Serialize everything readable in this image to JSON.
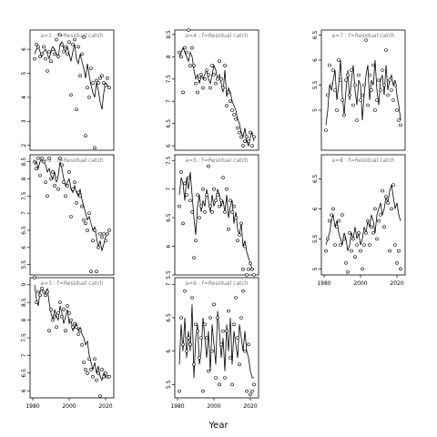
{
  "xlabel": "Year",
  "chart_data": [
    {
      "type": "line",
      "title": "a=1  :  f=Residual catch",
      "ylim": [
        1.8,
        6.8
      ],
      "yticks": [
        2,
        3,
        4,
        5,
        6
      ],
      "xticks": [],
      "x": [
        1981,
        1982,
        1983,
        1984,
        1985,
        1986,
        1987,
        1988,
        1989,
        1990,
        1991,
        1992,
        1993,
        1994,
        1995,
        1996,
        1997,
        1998,
        1999,
        2000,
        2001,
        2002,
        2003,
        2004,
        2005,
        2006,
        2007,
        2008,
        2009,
        2010,
        2011,
        2012,
        2013,
        2014,
        2015,
        2016,
        2017,
        2018,
        2019,
        2020,
        2021,
        2022
      ],
      "series": [
        {
          "type": "line",
          "values": [
            5.8,
            6.0,
            6.1,
            5.9,
            5.7,
            5.9,
            6.0,
            5.8,
            5.6,
            5.9,
            6.1,
            6.0,
            5.8,
            5.7,
            6.2,
            6.3,
            6.0,
            5.9,
            6.1,
            5.8,
            5.5,
            5.9,
            6.2,
            5.6,
            5.4,
            5.8,
            5.5,
            5.2,
            4.8,
            5.4,
            4.9,
            4.5,
            4.2,
            4.0,
            4.6,
            4.3,
            3.8,
            3.5,
            4.2,
            4.6,
            4.5,
            4.4
          ]
        },
        {
          "type": "scatter",
          "values": [
            5.6,
            6.2,
            6.1,
            5.7,
            5.8,
            6.1,
            5.6,
            5.1,
            5.9,
            5.5,
            6.0,
            5.8,
            6.4,
            5.7,
            6.6,
            6.2,
            5.9,
            6.1,
            5.8,
            6.3,
            4.1,
            6.2,
            6.4,
            3.5,
            6.1,
            4.9,
            5.8,
            6.5,
            2.4,
            4.4,
            4.0,
            5.2,
            4.6,
            1.9,
            4.7,
            4.6,
            4.8,
            4.9,
            4.6,
            4.5,
            4.8,
            4.4
          ]
        }
      ]
    },
    {
      "type": "line",
      "title": "a=4  :  f=Residual catch",
      "ylim": [
        5.9,
        8.6
      ],
      "yticks": [
        6.0,
        6.5,
        7.0,
        7.5,
        8.0,
        8.5
      ],
      "xticks": [],
      "x": [
        1981,
        1982,
        1983,
        1984,
        1985,
        1986,
        1987,
        1988,
        1989,
        1990,
        1991,
        1992,
        1993,
        1994,
        1995,
        1996,
        1997,
        1998,
        1999,
        2000,
        2001,
        2002,
        2003,
        2004,
        2005,
        2006,
        2007,
        2008,
        2009,
        2010,
        2011,
        2012,
        2013,
        2014,
        2015,
        2016,
        2017,
        2018,
        2019,
        2020,
        2021,
        2022
      ],
      "series": [
        {
          "type": "line",
          "values": [
            8.0,
            8.1,
            8.2,
            8.1,
            8.0,
            7.9,
            8.1,
            8.0,
            7.7,
            7.5,
            7.6,
            7.4,
            7.6,
            7.5,
            7.6,
            7.7,
            7.5,
            7.4,
            7.6,
            7.8,
            7.7,
            7.5,
            7.6,
            7.4,
            7.2,
            7.7,
            7.1,
            7.3,
            7.2,
            7.0,
            6.9,
            6.8,
            6.6,
            6.5,
            6.3,
            6.2,
            6.4,
            6.1,
            6.0,
            6.2,
            6.3,
            6.1
          ]
        },
        {
          "type": "scatter",
          "values": [
            8.1,
            8.0,
            7.2,
            8.2,
            8.1,
            8.6,
            7.8,
            8.2,
            7.8,
            7.4,
            7.2,
            7.5,
            7.6,
            7.3,
            7.5,
            7.7,
            7.6,
            7.3,
            7.8,
            7.6,
            7.4,
            7.5,
            7.9,
            7.5,
            7.3,
            7.8,
            6.9,
            7.2,
            7.0,
            6.8,
            6.7,
            6.6,
            6.4,
            6.3,
            6.2,
            6.0,
            6.1,
            6.2,
            6.1,
            6.3,
            6.0,
            6.2
          ]
        }
      ]
    },
    {
      "type": "line",
      "title": "a=7  :  f=Residual catch",
      "ylim": [
        4.2,
        6.6
      ],
      "yticks": [
        5.0,
        5.5,
        6.0,
        6.5
      ],
      "xticks": [],
      "x": [
        1981,
        1982,
        1983,
        1984,
        1985,
        1986,
        1987,
        1988,
        1989,
        1990,
        1991,
        1992,
        1993,
        1994,
        1995,
        1996,
        1997,
        1998,
        1999,
        2000,
        2001,
        2002,
        2003,
        2004,
        2005,
        2006,
        2007,
        2008,
        2009,
        2010,
        2011,
        2012,
        2013,
        2014,
        2015,
        2016,
        2017,
        2018,
        2019,
        2020,
        2021,
        2022
      ],
      "series": [
        {
          "type": "line",
          "values": [
            4.7,
            5.0,
            5.5,
            5.4,
            5.6,
            5.8,
            5.2,
            5.5,
            6.0,
            5.3,
            4.9,
            5.4,
            5.8,
            5.2,
            5.6,
            5.9,
            5.4,
            5.1,
            5.6,
            5.5,
            4.8,
            5.3,
            5.7,
            5.9,
            5.2,
            5.6,
            5.5,
            6.0,
            5.4,
            5.1,
            5.6,
            5.7,
            5.3,
            5.9,
            5.4,
            5.6,
            5.7,
            5.5,
            5.6,
            5.3,
            5.1,
            4.8
          ]
        },
        {
          "type": "scatter",
          "values": [
            4.6,
            5.3,
            5.9,
            5.5,
            5.8,
            5.4,
            5.0,
            6.0,
            5.6,
            5.2,
            4.9,
            5.6,
            5.7,
            5.3,
            5.8,
            5.1,
            5.5,
            4.8,
            5.7,
            5.2,
            5.3,
            5.5,
            6.4,
            5.1,
            5.7,
            5.4,
            5.9,
            5.0,
            5.2,
            5.6,
            5.4,
            5.8,
            5.5,
            6.2,
            5.3,
            5.6,
            5.4,
            5.2,
            5.5,
            5.0,
            4.8,
            4.7
          ]
        }
      ]
    },
    {
      "type": "line",
      "title": "a=2  :  f=Residual catch",
      "ylim": [
        5.2,
        8.7
      ],
      "yticks": [
        5.5,
        6.0,
        6.5,
        7.0,
        7.5,
        8.0,
        8.5
      ],
      "xticks": [],
      "x": [
        1981,
        1982,
        1983,
        1984,
        1985,
        1986,
        1987,
        1988,
        1989,
        1990,
        1991,
        1992,
        1993,
        1994,
        1995,
        1996,
        1997,
        1998,
        1999,
        2000,
        2001,
        2002,
        2003,
        2004,
        2005,
        2006,
        2007,
        2008,
        2009,
        2010,
        2011,
        2012,
        2013,
        2014,
        2015,
        2016,
        2017,
        2018,
        2019,
        2020,
        2021,
        2022
      ],
      "series": [
        {
          "type": "line",
          "values": [
            8.4,
            8.5,
            8.3,
            8.5,
            8.6,
            8.5,
            8.4,
            8.2,
            8.3,
            8.1,
            8.0,
            8.2,
            7.9,
            8.1,
            8.5,
            8.3,
            8.0,
            7.8,
            7.9,
            8.0,
            7.7,
            7.6,
            7.8,
            7.6,
            7.5,
            7.7,
            7.4,
            7.2,
            7.0,
            6.8,
            6.9,
            6.7,
            6.5,
            6.6,
            6.3,
            6.0,
            6.2,
            5.9,
            6.1,
            6.3,
            6.4,
            6.4
          ]
        },
        {
          "type": "scatter",
          "values": [
            8.5,
            8.3,
            8.6,
            8.1,
            8.6,
            8.5,
            7.9,
            7.5,
            8.6,
            8.0,
            8.2,
            7.8,
            8.0,
            7.7,
            8.6,
            8.4,
            7.9,
            7.5,
            7.8,
            8.2,
            6.9,
            7.7,
            7.9,
            7.3,
            7.6,
            7.5,
            7.2,
            6.8,
            6.7,
            6.5,
            7.0,
            5.3,
            6.2,
            6.5,
            5.3,
            6.0,
            6.4,
            6.3,
            6.4,
            6.2,
            6.4,
            6.5
          ]
        }
      ]
    },
    {
      "type": "line",
      "title": "a=5  :  f=Residual catch",
      "ylim": [
        5.5,
        7.6
      ],
      "yticks": [
        5.5,
        6.0,
        6.5,
        7.0,
        7.5
      ],
      "xticks": [],
      "x": [
        1981,
        1982,
        1983,
        1984,
        1985,
        1986,
        1987,
        1988,
        1989,
        1990,
        1991,
        1992,
        1993,
        1994,
        1995,
        1996,
        1997,
        1998,
        1999,
        2000,
        2001,
        2002,
        2003,
        2004,
        2005,
        2006,
        2007,
        2008,
        2009,
        2010,
        2011,
        2012,
        2013,
        2014,
        2015,
        2016,
        2017,
        2018,
        2019,
        2020,
        2021,
        2022
      ],
      "series": [
        {
          "type": "line",
          "values": [
            6.9,
            7.2,
            7.1,
            6.8,
            7.2,
            7.0,
            7.3,
            6.9,
            6.5,
            6.2,
            6.7,
            6.9,
            6.6,
            6.8,
            6.7,
            7.0,
            6.8,
            6.6,
            6.9,
            6.7,
            6.8,
            7.0,
            6.9,
            6.7,
            6.8,
            6.6,
            6.9,
            6.5,
            6.7,
            6.8,
            6.4,
            6.6,
            6.3,
            6.2,
            6.4,
            6.0,
            6.1,
            5.9,
            5.8,
            5.7,
            5.6,
            5.6
          ]
        },
        {
          "type": "scatter",
          "values": [
            6.7,
            7.3,
            6.4,
            7.1,
            6.9,
            7.2,
            6.8,
            6.6,
            5.8,
            6.1,
            6.9,
            6.5,
            6.7,
            7.0,
            6.6,
            6.9,
            7.4,
            6.7,
            6.6,
            7.0,
            6.8,
            6.9,
            6.7,
            6.8,
            7.2,
            6.6,
            7.0,
            6.3,
            6.8,
            6.6,
            6.7,
            6.5,
            6.1,
            6.2,
            6.4,
            5.6,
            6.0,
            5.5,
            5.6,
            5.7,
            5.6,
            5.5
          ]
        }
      ]
    },
    {
      "type": "line",
      "title": "a=8  :  f=Residual catch",
      "ylim": [
        4.9,
        6.9
      ],
      "yticks": [
        5.0,
        5.5,
        6.0,
        6.5
      ],
      "xticks": [
        1980,
        2000,
        2020
      ],
      "x": [
        1981,
        1982,
        1983,
        1984,
        1985,
        1986,
        1987,
        1988,
        1989,
        1990,
        1991,
        1992,
        1993,
        1994,
        1995,
        1996,
        1997,
        1998,
        1999,
        2000,
        2001,
        2002,
        2003,
        2004,
        2005,
        2006,
        2007,
        2008,
        2009,
        2010,
        2011,
        2012,
        2013,
        2014,
        2015,
        2016,
        2017,
        2018,
        2019,
        2020,
        2021,
        2022
      ],
      "series": [
        {
          "type": "line",
          "values": [
            5.4,
            5.5,
            5.6,
            5.8,
            5.9,
            5.7,
            5.8,
            5.6,
            5.5,
            5.4,
            5.6,
            5.5,
            5.3,
            5.4,
            5.6,
            5.5,
            5.7,
            5.5,
            5.6,
            5.4,
            5.5,
            5.7,
            5.6,
            5.8,
            5.7,
            5.9,
            5.8,
            5.6,
            5.9,
            6.0,
            6.1,
            5.9,
            6.0,
            6.2,
            6.1,
            6.3,
            6.4,
            6.2,
            6.0,
            6.1,
            5.9,
            5.8
          ]
        },
        {
          "type": "scatter",
          "values": [
            5.3,
            5.5,
            5.8,
            5.9,
            6.0,
            5.4,
            5.7,
            5.8,
            5.4,
            5.9,
            5.5,
            5.1,
            4.95,
            5.6,
            5.3,
            5.5,
            5.2,
            5.4,
            5.6,
            5.3,
            5.0,
            5.4,
            5.6,
            5.8,
            5.4,
            5.7,
            5.6,
            6.0,
            5.5,
            5.8,
            5.9,
            6.3,
            5.7,
            6.2,
            6.1,
            5.3,
            6.0,
            6.4,
            5.4,
            5.1,
            5.3,
            5.0
          ]
        }
      ]
    },
    {
      "type": "line",
      "title": "a=3  :  f=Residual catch",
      "ylim": [
        5.8,
        9.2
      ],
      "yticks": [
        6.0,
        6.5,
        7.0,
        7.5,
        8.0,
        8.5,
        9.0
      ],
      "xticks": [
        1980,
        2000,
        2020
      ],
      "x": [
        1981,
        1982,
        1983,
        1984,
        1985,
        1986,
        1987,
        1988,
        1989,
        1990,
        1991,
        1992,
        1993,
        1994,
        1995,
        1996,
        1997,
        1998,
        1999,
        2000,
        2001,
        2002,
        2003,
        2004,
        2005,
        2006,
        2007,
        2008,
        2009,
        2010,
        2011,
        2012,
        2013,
        2014,
        2015,
        2016,
        2017,
        2018,
        2019,
        2020,
        2021,
        2022
      ],
      "series": [
        {
          "type": "line",
          "values": [
            9.0,
            8.6,
            8.4,
            8.8,
            8.9,
            8.8,
            8.7,
            8.9,
            8.5,
            8.2,
            8.0,
            8.3,
            8.1,
            8.0,
            8.4,
            8.2,
            7.9,
            8.1,
            8.3,
            7.9,
            8.0,
            7.7,
            7.8,
            7.9,
            7.7,
            7.8,
            7.6,
            7.5,
            7.3,
            7.4,
            7.0,
            6.8,
            6.6,
            6.8,
            6.5,
            6.7,
            6.4,
            6.3,
            6.5,
            6.4,
            6.4,
            6.4
          ]
        },
        {
          "type": "scatter",
          "values": [
            9.2,
            8.5,
            8.8,
            8.7,
            8.9,
            8.8,
            8.7,
            8.8,
            7.7,
            8.3,
            8.0,
            8.1,
            7.8,
            8.2,
            8.5,
            8.1,
            8.3,
            7.7,
            8.4,
            8.2,
            8.0,
            7.8,
            7.9,
            7.8,
            7.6,
            7.7,
            7.3,
            6.8,
            6.6,
            6.5,
            6.9,
            6.6,
            6.4,
            6.9,
            6.3,
            6.5,
            5.85,
            6.6,
            6.4,
            6.5,
            6.4,
            6.4
          ]
        }
      ]
    },
    {
      "type": "line",
      "title": "a=6  :  f=Residual catch",
      "ylim": [
        5.3,
        7.1
      ],
      "yticks": [
        5.5,
        6.0,
        6.5,
        7.0
      ],
      "xticks": [
        1980,
        2000,
        2020
      ],
      "x": [
        1981,
        1982,
        1983,
        1984,
        1985,
        1986,
        1987,
        1988,
        1989,
        1990,
        1991,
        1992,
        1993,
        1994,
        1995,
        1996,
        1997,
        1998,
        1999,
        2000,
        2001,
        2002,
        2003,
        2004,
        2005,
        2006,
        2007,
        2008,
        2009,
        2010,
        2011,
        2012,
        2013,
        2014,
        2015,
        2016,
        2017,
        2018,
        2019,
        2020,
        2021,
        2022
      ],
      "series": [
        {
          "type": "line",
          "values": [
            5.8,
            6.4,
            6.0,
            6.5,
            5.9,
            6.3,
            6.0,
            6.7,
            5.6,
            6.2,
            6.4,
            5.8,
            6.0,
            6.5,
            6.2,
            5.9,
            6.3,
            5.7,
            6.4,
            6.1,
            5.8,
            6.6,
            6.3,
            5.9,
            6.2,
            5.7,
            6.4,
            6.0,
            6.5,
            5.8,
            6.3,
            6.1,
            5.9,
            6.4,
            6.2,
            6.0,
            6.3,
            6.0,
            5.9,
            5.7,
            5.6,
            5.6
          ]
        },
        {
          "type": "scatter",
          "values": [
            5.4,
            6.5,
            6.1,
            6.9,
            6.0,
            6.2,
            6.1,
            6.8,
            5.8,
            6.4,
            6.3,
            5.9,
            6.2,
            5.4,
            6.4,
            6.2,
            5.7,
            6.5,
            6.0,
            6.7,
            5.6,
            6.5,
            5.5,
            6.1,
            6.3,
            5.6,
            6.3,
            6.6,
            5.9,
            5.5,
            6.4,
            6.8,
            6.2,
            5.8,
            6.5,
            6.9,
            6.0,
            5.4,
            6.1,
            5.35,
            5.4,
            5.5
          ]
        }
      ]
    }
  ]
}
